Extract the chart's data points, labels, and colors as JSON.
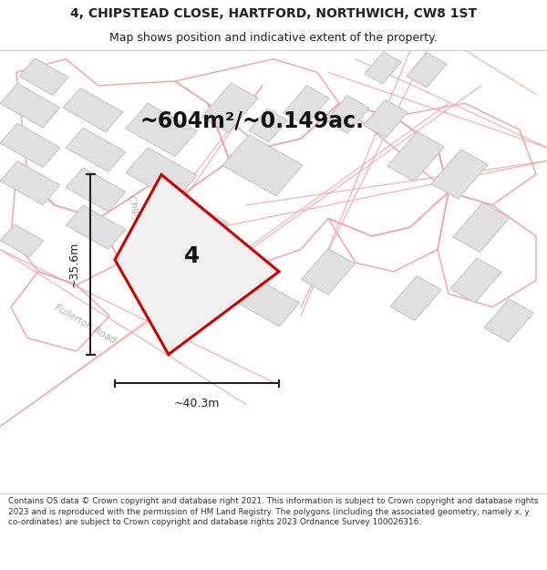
{
  "title_line1": "4, CHIPSTEAD CLOSE, HARTFORD, NORTHWICH, CW8 1ST",
  "title_line2": "Map shows position and indicative extent of the property.",
  "area_label": "~604m²/~0.149ac.",
  "width_label": "~40.3m",
  "height_label": "~35.6m",
  "plot_number": "4",
  "footer_text": "Contains OS data © Crown copyright and database right 2021. This information is subject to Crown copyright and database rights 2023 and is reproduced with the permission of HM Land Registry. The polygons (including the associated geometry, namely x, y co-ordinates) are subject to Crown copyright and database rights 2023 Ordnance Survey 100026316.",
  "bg_color": "#ffffff",
  "map_bg": "#ffffff",
  "building_fill": "#e0e0e0",
  "building_edge": "#bbbbbb",
  "plot_outline_color": "#f5a0a0",
  "red_outline": "#cc0000",
  "dim_color": "#222222",
  "text_color": "#222222",
  "road_label_color": "#aaaaaa",
  "title_fontsize": 10,
  "subtitle_fontsize": 9,
  "area_fontsize": 17,
  "plot_num_fontsize": 18,
  "dim_fontsize": 9,
  "road_label_fontsize": 7.5
}
